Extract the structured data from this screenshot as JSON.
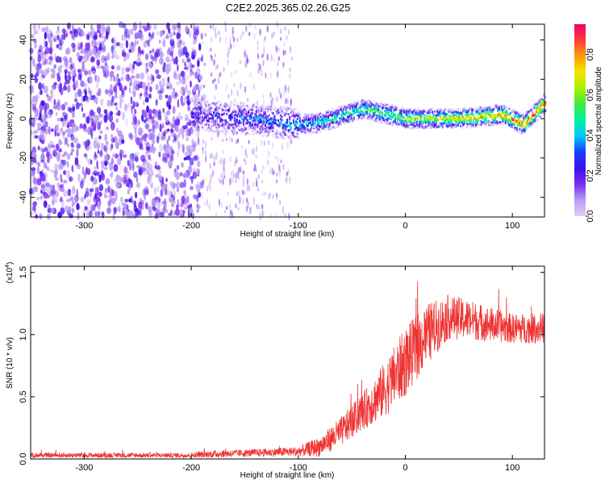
{
  "title": "C2E2.2025.365.02.26.G25",
  "chart_data": [
    {
      "type": "heatmap",
      "name": "spectrogram",
      "xlabel": "Height of straight line (km)",
      "ylabel": "Frequency (Hz)",
      "xlim": [
        -350,
        130
      ],
      "ylim": [
        -50,
        48
      ],
      "xticks": [
        "-300",
        "-200",
        "-100",
        "0",
        "100"
      ],
      "yticks": [
        "-40",
        "-20",
        "0",
        "20",
        "40"
      ],
      "ridge": {
        "start_km": -200,
        "center_hz": [
          [
            -200,
            2
          ],
          [
            -150,
            0
          ],
          [
            -100,
            -3
          ],
          [
            -80,
            -2
          ],
          [
            -40,
            5
          ],
          [
            0,
            0
          ],
          [
            50,
            0
          ],
          [
            90,
            2
          ],
          [
            110,
            -3
          ],
          [
            130,
            8
          ]
        ]
      },
      "noise_region_km": [
        -350,
        -190
      ],
      "colorbar": {
        "label": "Normalized spectral amplitude",
        "range": [
          0,
          0.95
        ],
        "ticks": [
          "0.0",
          "0.2",
          "0.4",
          "0.6",
          "0.8"
        ],
        "colors": [
          "#e2cff7",
          "#b79df2",
          "#7a2df0",
          "#3a10e8",
          "#1a3cff",
          "#00c8ff",
          "#00f0a0",
          "#40e840",
          "#a8f000",
          "#f2e600",
          "#ff9a00",
          "#ff3c3c",
          "#f00060"
        ]
      }
    },
    {
      "type": "line",
      "name": "snr",
      "xlabel": "Height of straight line (km)",
      "ylabel": "SNR (10 * v/v)",
      "multiplier": "(x10",
      "multiplier_exp": "4",
      "multiplier_close": ")",
      "xlim": [
        -350,
        130
      ],
      "ylim": [
        0,
        1.55
      ],
      "xticks": [
        "-300",
        "-200",
        "-100",
        "0",
        "100"
      ],
      "yticks": [
        "0.0",
        "0.5",
        "1.0",
        "1.5"
      ],
      "color": "#ee3333",
      "envelope": {
        "x": [
          -350,
          -200,
          -180,
          -140,
          -100,
          -80,
          -60,
          -40,
          -20,
          0,
          20,
          40,
          60,
          80,
          100,
          130
        ],
        "mean": [
          0.03,
          0.03,
          0.04,
          0.05,
          0.06,
          0.1,
          0.22,
          0.38,
          0.55,
          0.78,
          1.0,
          1.14,
          1.12,
          1.08,
          1.05,
          1.05
        ],
        "noise": [
          0.02,
          0.02,
          0.03,
          0.03,
          0.04,
          0.08,
          0.12,
          0.15,
          0.22,
          0.28,
          0.25,
          0.18,
          0.16,
          0.14,
          0.12,
          0.12
        ]
      }
    }
  ]
}
